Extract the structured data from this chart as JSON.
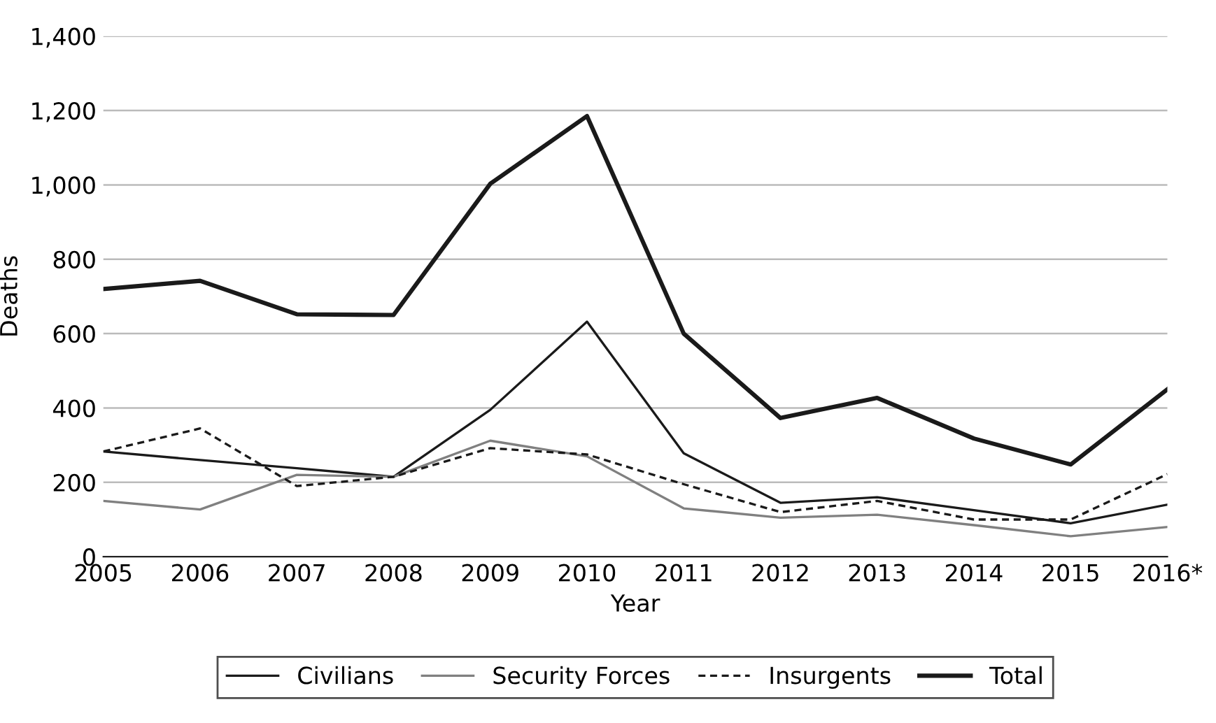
{
  "chart_data": {
    "type": "line",
    "xlabel": "Year",
    "ylabel": "Deaths",
    "categories": [
      "2005",
      "2006",
      "2007",
      "2008",
      "2009",
      "2010",
      "2011",
      "2012",
      "2013",
      "2014",
      "2015",
      "2016*"
    ],
    "ylim": [
      0,
      1400
    ],
    "yticks": [
      0,
      {
        "value": 200,
        "label": "200"
      },
      {
        "value": 400,
        "label": "400"
      },
      {
        "value": 600,
        "label": "600"
      },
      {
        "value": 800,
        "label": "800"
      },
      {
        "value": 1000,
        "label": "1,000"
      },
      {
        "value": 1200,
        "label": "1,200"
      },
      {
        "value": 1400,
        "label": "1,400"
      }
    ],
    "grid": "y",
    "legend": "bottom",
    "marker": "none",
    "series": [
      {
        "name": "Civilians",
        "color": "#1a1a1a",
        "line_style": "solid",
        "values": [
          283,
          260,
          238,
          215,
          395,
          632,
          278,
          145,
          160,
          125,
          90,
          140
        ]
      },
      {
        "name": "Security Forces",
        "color": "#808080",
        "line_style": "solid",
        "values": [
          150,
          127,
          220,
          215,
          312,
          270,
          130,
          105,
          113,
          85,
          55,
          80
        ]
      },
      {
        "name": "Insurgents",
        "color": "#1a1a1a",
        "line_style": "dashed",
        "values": [
          283,
          345,
          190,
          215,
          292,
          275,
          195,
          120,
          150,
          100,
          100,
          222
        ]
      },
      {
        "name": "Total",
        "color": "#1a1a1a",
        "line_style": "solid",
        "values": [
          720,
          742,
          652,
          650,
          1003,
          1185,
          600,
          373,
          427,
          318,
          248,
          450
        ]
      }
    ]
  }
}
